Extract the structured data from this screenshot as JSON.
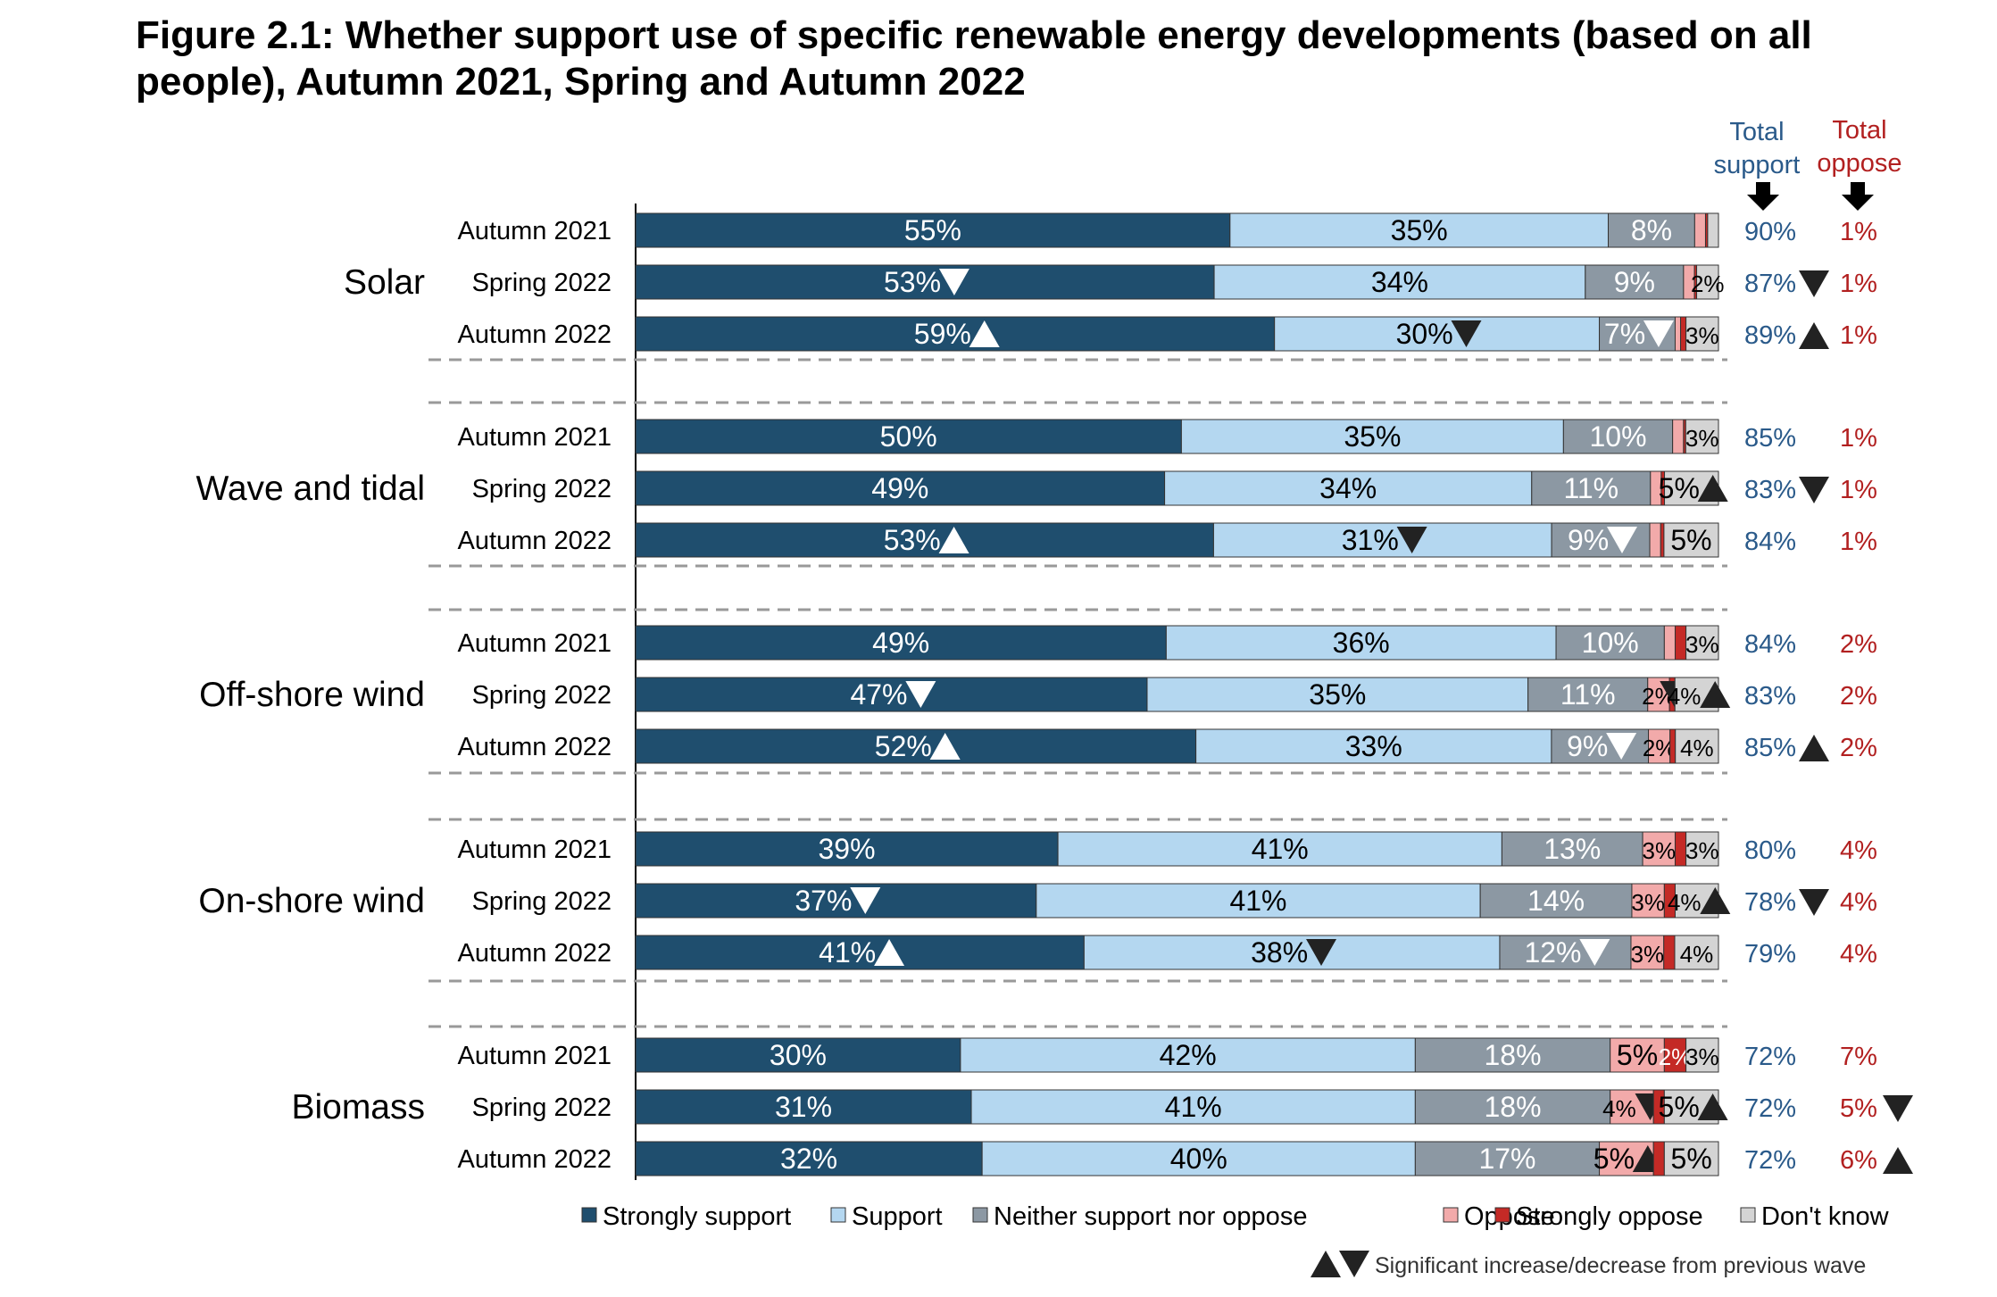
{
  "title": "Figure 2.1: Whether support use of specific renewable energy developments (based on all people), Autumn 2021, Spring and Autumn 2022",
  "column_headers": {
    "total_support": [
      "Total",
      "support"
    ],
    "total_oppose": [
      "Total",
      "oppose"
    ]
  },
  "legend_note": "Significant increase/decrease from previous wave",
  "colors": {
    "strongly_support": "#1f4e6e",
    "support": "#b4d7f0",
    "neither": "#8c98a3",
    "oppose": "#f2aaaa",
    "strongly_oppose": "#c42a26",
    "dont_know": "#d4d4d4",
    "total_support_text": "#2a5a8a",
    "total_oppose_text": "#b22020",
    "separator": "#999999"
  },
  "chart_data": {
    "type": "bar",
    "orientation": "horizontal",
    "stacked": true,
    "xlim": [
      0,
      100
    ],
    "units": "%",
    "categories": [
      "Solar",
      "Wave and tidal",
      "Off-shore wind",
      "On-shore wind",
      "Biomass"
    ],
    "waves": [
      "Autumn 2021",
      "Spring 2022",
      "Autumn 2022"
    ],
    "series": [
      {
        "name": "Strongly support",
        "color": "#1f4e6e",
        "label_color": "#ffffff",
        "values": [
          [
            55,
            53,
            59
          ],
          [
            50,
            49,
            53
          ],
          [
            49,
            47,
            52
          ],
          [
            39,
            37,
            41
          ],
          [
            30,
            31,
            32
          ]
        ],
        "labels": [
          [
            "55%",
            "53%",
            "59%"
          ],
          [
            "50%",
            "49%",
            "53%"
          ],
          [
            "49%",
            "47%",
            "52%"
          ],
          [
            "39%",
            "37%",
            "41%"
          ],
          [
            "30%",
            "31%",
            "32%"
          ]
        ]
      },
      {
        "name": "Support",
        "color": "#b4d7f0",
        "label_color": "#000000",
        "values": [
          [
            35,
            34,
            30
          ],
          [
            35,
            34,
            31
          ],
          [
            36,
            35,
            33
          ],
          [
            41,
            41,
            38
          ],
          [
            42,
            41,
            40
          ]
        ],
        "labels": [
          [
            "35%",
            "34%",
            "30%"
          ],
          [
            "35%",
            "34%",
            "31%"
          ],
          [
            "36%",
            "35%",
            "33%"
          ],
          [
            "41%",
            "41%",
            "38%"
          ],
          [
            "42%",
            "41%",
            "40%"
          ]
        ]
      },
      {
        "name": "Neither support nor oppose",
        "color": "#8c98a3",
        "label_color": "#ffffff",
        "values": [
          [
            8,
            9,
            7
          ],
          [
            10,
            11,
            9
          ],
          [
            10,
            11,
            9
          ],
          [
            13,
            14,
            12
          ],
          [
            18,
            18,
            17
          ]
        ],
        "labels": [
          [
            "8%",
            "9%",
            "7%"
          ],
          [
            "10%",
            "11%",
            "9%"
          ],
          [
            "10%",
            "11%",
            "9%"
          ],
          [
            "13%",
            "14%",
            "12%"
          ],
          [
            "18%",
            "18%",
            "17%"
          ]
        ]
      },
      {
        "name": "Oppose",
        "color": "#f2aaaa",
        "label_color": "#000000",
        "values": [
          [
            1,
            1,
            0.5
          ],
          [
            1,
            1,
            1
          ],
          [
            1,
            2,
            2
          ],
          [
            3,
            3,
            3
          ],
          [
            5,
            4,
            5
          ]
        ],
        "labels": [
          [
            "",
            "",
            ""
          ],
          [
            "",
            "",
            ""
          ],
          [
            "",
            "2%",
            "2%"
          ],
          [
            "3%",
            "3%",
            "3%"
          ],
          [
            "5%",
            "4%",
            "5%"
          ]
        ]
      },
      {
        "name": "Strongly oppose",
        "color": "#c42a26",
        "label_color": "#ffffff",
        "values": [
          [
            0.2,
            0.2,
            0.5
          ],
          [
            0.2,
            0.3,
            0.3
          ],
          [
            1,
            0.5,
            0.5
          ],
          [
            1,
            1,
            1
          ],
          [
            2,
            1,
            1
          ]
        ],
        "labels": [
          [
            "",
            "",
            ""
          ],
          [
            "",
            "",
            ""
          ],
          [
            "",
            "",
            ""
          ],
          [
            "",
            "",
            ""
          ],
          [
            "2%",
            "",
            ""
          ]
        ]
      },
      {
        "name": "Don't know",
        "color": "#d4d4d4",
        "label_color": "#000000",
        "values": [
          [
            1,
            2,
            3
          ],
          [
            3,
            5,
            5
          ],
          [
            3,
            4,
            4
          ],
          [
            3,
            4,
            4
          ],
          [
            3,
            5,
            5
          ]
        ],
        "labels": [
          [
            "",
            "2%",
            "3%"
          ],
          [
            "3%",
            "5%",
            "5%"
          ],
          [
            "3%",
            "4%",
            "4%"
          ],
          [
            "3%",
            "4%",
            "4%"
          ],
          [
            "3%",
            "5%",
            "5%"
          ]
        ]
      }
    ],
    "significance": [
      [
        [
          null,
          "down",
          "up"
        ],
        [
          null,
          null,
          "down"
        ],
        [
          null,
          null,
          "down"
        ],
        [
          null,
          null,
          null
        ],
        [
          null,
          null,
          null
        ],
        [
          null,
          null,
          null
        ]
      ],
      [
        [
          null,
          null,
          "up"
        ],
        [
          null,
          null,
          "down"
        ],
        [
          null,
          null,
          "down"
        ],
        [
          null,
          null,
          null
        ],
        [
          null,
          null,
          null
        ],
        [
          null,
          "up",
          null
        ]
      ],
      [
        [
          null,
          "down",
          "up"
        ],
        [
          null,
          null,
          null
        ],
        [
          null,
          null,
          "down"
        ],
        [
          null,
          null,
          null
        ],
        [
          null,
          "down",
          null
        ],
        [
          null,
          "up",
          null
        ]
      ],
      [
        [
          null,
          "down",
          "up"
        ],
        [
          null,
          null,
          "down"
        ],
        [
          null,
          null,
          "down"
        ],
        [
          null,
          null,
          null
        ],
        [
          null,
          null,
          null
        ],
        [
          null,
          "up",
          null
        ]
      ],
      [
        [
          null,
          null,
          null
        ],
        [
          null,
          null,
          null
        ],
        [
          null,
          null,
          null
        ],
        [
          null,
          "down",
          "up"
        ],
        [
          null,
          null,
          null
        ],
        [
          null,
          "up",
          null
        ]
      ]
    ],
    "total_support": [
      [
        "90%",
        "87%",
        "89%"
      ],
      [
        "85%",
        "83%",
        "84%"
      ],
      [
        "84%",
        "83%",
        "85%"
      ],
      [
        "80%",
        "78%",
        "79%"
      ],
      [
        "72%",
        "72%",
        "72%"
      ]
    ],
    "total_support_sig": [
      [
        null,
        "down",
        "up"
      ],
      [
        null,
        "down",
        null
      ],
      [
        null,
        null,
        "up"
      ],
      [
        null,
        "down",
        null
      ],
      [
        null,
        null,
        null
      ]
    ],
    "total_oppose": [
      [
        "1%",
        "1%",
        "1%"
      ],
      [
        "1%",
        "1%",
        "1%"
      ],
      [
        "2%",
        "2%",
        "2%"
      ],
      [
        "4%",
        "4%",
        "4%"
      ],
      [
        "7%",
        "5%",
        "6%"
      ]
    ],
    "total_oppose_sig": [
      [
        null,
        null,
        null
      ],
      [
        null,
        null,
        null
      ],
      [
        null,
        null,
        null
      ],
      [
        null,
        null,
        null
      ],
      [
        null,
        "down",
        "up"
      ]
    ],
    "legend_position": "bottom",
    "grid": false
  }
}
